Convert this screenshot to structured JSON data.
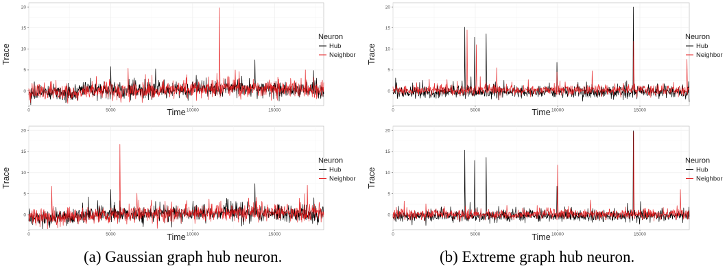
{
  "captions": {
    "a": "(a) Gaussian graph hub neuron.",
    "b": "(b) Extreme graph hub neuron."
  },
  "colors": {
    "hub": "#000000",
    "neighbor": "#e41a1c",
    "grid": "#ebebeb",
    "frame": "#b3b3b3"
  },
  "chart_data": [
    {
      "id": "gaussian-top",
      "type": "line",
      "xlabel": "Time",
      "ylabel": "Trace",
      "xlim": [
        0,
        18000
      ],
      "ylim": [
        -3.5,
        21
      ],
      "xticks": [
        0,
        5000,
        10000,
        15000
      ],
      "yticks": [
        0,
        5,
        10,
        15,
        20
      ],
      "legend": {
        "title": "Neuron",
        "position": "right",
        "entries": [
          "Hub",
          "Neighbor"
        ]
      },
      "grid": true,
      "seed": 11,
      "series": [
        {
          "name": "Hub",
          "color": "#000000",
          "noise": 1.0,
          "drift": [
            [
              0,
              -0.5
            ],
            [
              3000,
              -0.6
            ],
            [
              3200,
              0.1
            ],
            [
              9000,
              0.2
            ],
            [
              11000,
              0.5
            ],
            [
              18000,
              0.3
            ]
          ],
          "spikes": [
            [
              5000,
              5.8
            ],
            [
              13800,
              7.4
            ],
            [
              13000,
              3.5
            ]
          ]
        },
        {
          "name": "Neighbor",
          "color": "#e41a1c",
          "noise": 1.0,
          "drift": [
            [
              0,
              -0.3
            ],
            [
              3000,
              -0.5
            ],
            [
              3200,
              0.0
            ],
            [
              9000,
              0.2
            ],
            [
              11000,
              0.6
            ],
            [
              18000,
              0.5
            ]
          ],
          "spikes": [
            [
              11630,
              19.8
            ],
            [
              6050,
              5.4
            ],
            [
              12600,
              5.0
            ],
            [
              15200,
              3.3
            ]
          ]
        }
      ]
    },
    {
      "id": "extreme-top",
      "type": "line",
      "xlabel": "Time",
      "ylabel": "Trace",
      "xlim": [
        0,
        18000
      ],
      "ylim": [
        -3.5,
        21
      ],
      "xticks": [
        0,
        5000,
        10000,
        15000
      ],
      "yticks": [
        0,
        5,
        10,
        15,
        20
      ],
      "legend": {
        "title": "Neuron",
        "position": "right",
        "entries": [
          "Hub",
          "Neighbor"
        ]
      },
      "grid": true,
      "seed": 23,
      "series": [
        {
          "name": "Hub",
          "color": "#000000",
          "noise": 0.7,
          "drift": [
            [
              0,
              -0.3
            ],
            [
              18000,
              -0.2
            ]
          ],
          "spikes": [
            [
              4350,
              15.2
            ],
            [
              4950,
              12.8
            ],
            [
              5650,
              13.6
            ],
            [
              9950,
              6.8
            ],
            [
              14600,
              20.0
            ],
            [
              1800,
              2.5
            ]
          ]
        },
        {
          "name": "Neighbor",
          "color": "#e41a1c",
          "noise": 0.6,
          "drift": [
            [
              0,
              0.1
            ],
            [
              18000,
              0.2
            ]
          ],
          "spikes": [
            [
              4500,
              14.5
            ],
            [
              5050,
              11.0
            ],
            [
              6300,
              5.5
            ],
            [
              12100,
              4.8
            ],
            [
              14620,
              11.8
            ],
            [
              17850,
              7.5
            ],
            [
              2200,
              2.8
            ],
            [
              9950,
              4.5
            ]
          ]
        }
      ]
    },
    {
      "id": "gaussian-bottom",
      "type": "line",
      "xlabel": "Time",
      "ylabel": "Trace",
      "xlim": [
        0,
        18000
      ],
      "ylim": [
        -3.5,
        21
      ],
      "xticks": [
        0,
        5000,
        10000,
        15000
      ],
      "yticks": [
        0,
        5,
        10,
        15,
        20
      ],
      "legend": {
        "title": "Neuron",
        "position": "right",
        "entries": [
          "Hub",
          "Neighbor"
        ]
      },
      "grid": true,
      "seed": 37,
      "series": [
        {
          "name": "Hub",
          "color": "#000000",
          "noise": 1.0,
          "drift": [
            [
              0,
              -0.6
            ],
            [
              3000,
              -0.7
            ],
            [
              3200,
              0.1
            ],
            [
              9000,
              0.2
            ],
            [
              11000,
              0.5
            ],
            [
              18000,
              0.2
            ]
          ],
          "spikes": [
            [
              5000,
              6.0
            ],
            [
              13800,
              7.4
            ],
            [
              4200,
              3.4
            ]
          ]
        },
        {
          "name": "Neighbor",
          "color": "#e41a1c",
          "noise": 1.0,
          "drift": [
            [
              0,
              -0.3
            ],
            [
              3000,
              -0.5
            ],
            [
              3200,
              0.0
            ],
            [
              9000,
              0.2
            ],
            [
              11000,
              0.6
            ],
            [
              18000,
              0.5
            ]
          ],
          "spikes": [
            [
              5560,
              16.7
            ],
            [
              1400,
              6.8
            ],
            [
              17000,
              7.0
            ],
            [
              13900,
              4.2
            ]
          ]
        }
      ]
    },
    {
      "id": "extreme-bottom",
      "type": "line",
      "xlabel": "Time",
      "ylabel": "Trace",
      "xlim": [
        0,
        18000
      ],
      "ylim": [
        -3.5,
        21
      ],
      "xticks": [
        0,
        5000,
        10000,
        15000
      ],
      "yticks": [
        0,
        5,
        10,
        15,
        20
      ],
      "legend": {
        "title": "Neuron",
        "position": "right",
        "entries": [
          "Hub",
          "Neighbor"
        ]
      },
      "grid": true,
      "seed": 51,
      "series": [
        {
          "name": "Hub",
          "color": "#000000",
          "noise": 0.7,
          "drift": [
            [
              0,
              -0.3
            ],
            [
              18000,
              -0.2
            ]
          ],
          "spikes": [
            [
              4350,
              15.3
            ],
            [
              4950,
              12.9
            ],
            [
              5650,
              13.6
            ],
            [
              9950,
              6.8
            ],
            [
              14600,
              19.9
            ]
          ]
        },
        {
          "name": "Neighbor",
          "color": "#e41a1c",
          "noise": 0.6,
          "drift": [
            [
              0,
              0.1
            ],
            [
              18000,
              0.2
            ]
          ],
          "spikes": [
            [
              14620,
              19.7
            ],
            [
              10000,
              11.8
            ],
            [
              17450,
              6.0
            ],
            [
              12000,
              3.5
            ],
            [
              2000,
              2.6
            ]
          ]
        }
      ]
    }
  ]
}
